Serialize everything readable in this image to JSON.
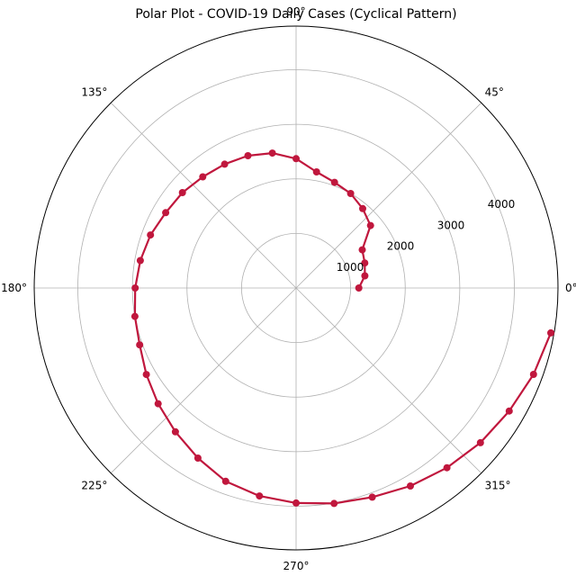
{
  "chart_data": {
    "type": "line",
    "projection": "polar",
    "title": "Polar Plot - COVID-19 Daily Cases (Cyclical Pattern)",
    "theta_ticks": [
      "0°",
      "45°",
      "90°",
      "135°",
      "180°",
      "225°",
      "270°",
      "315°"
    ],
    "theta_tick_values_deg": [
      0,
      45,
      90,
      135,
      180,
      225,
      270,
      315
    ],
    "r_ticks": [
      "1000",
      "2000",
      "3000",
      "4000"
    ],
    "r_tick_values": [
      1000,
      2000,
      3000,
      4000
    ],
    "r_lim": [
      0,
      4800
    ],
    "grid": true,
    "color": "#c0173d",
    "series": [
      {
        "theta_deg": [
          0,
          10,
          20,
          30,
          40,
          50,
          60,
          70,
          80,
          90,
          100,
          110,
          120,
          130,
          140,
          150,
          160,
          170,
          180,
          190,
          200,
          210,
          220,
          230,
          240,
          250,
          260,
          270,
          280,
          290,
          300,
          310,
          320,
          330,
          340,
          350
        ],
        "r": [
          1150,
          1280,
          1340,
          1400,
          1780,
          1900,
          2000,
          2060,
          2160,
          2370,
          2510,
          2580,
          2620,
          2660,
          2720,
          2760,
          2840,
          2900,
          2950,
          3000,
          3050,
          3170,
          3300,
          3440,
          3600,
          3770,
          3870,
          3940,
          4010,
          4080,
          4190,
          4300,
          4410,
          4510,
          4630,
          4740
        ]
      }
    ]
  }
}
